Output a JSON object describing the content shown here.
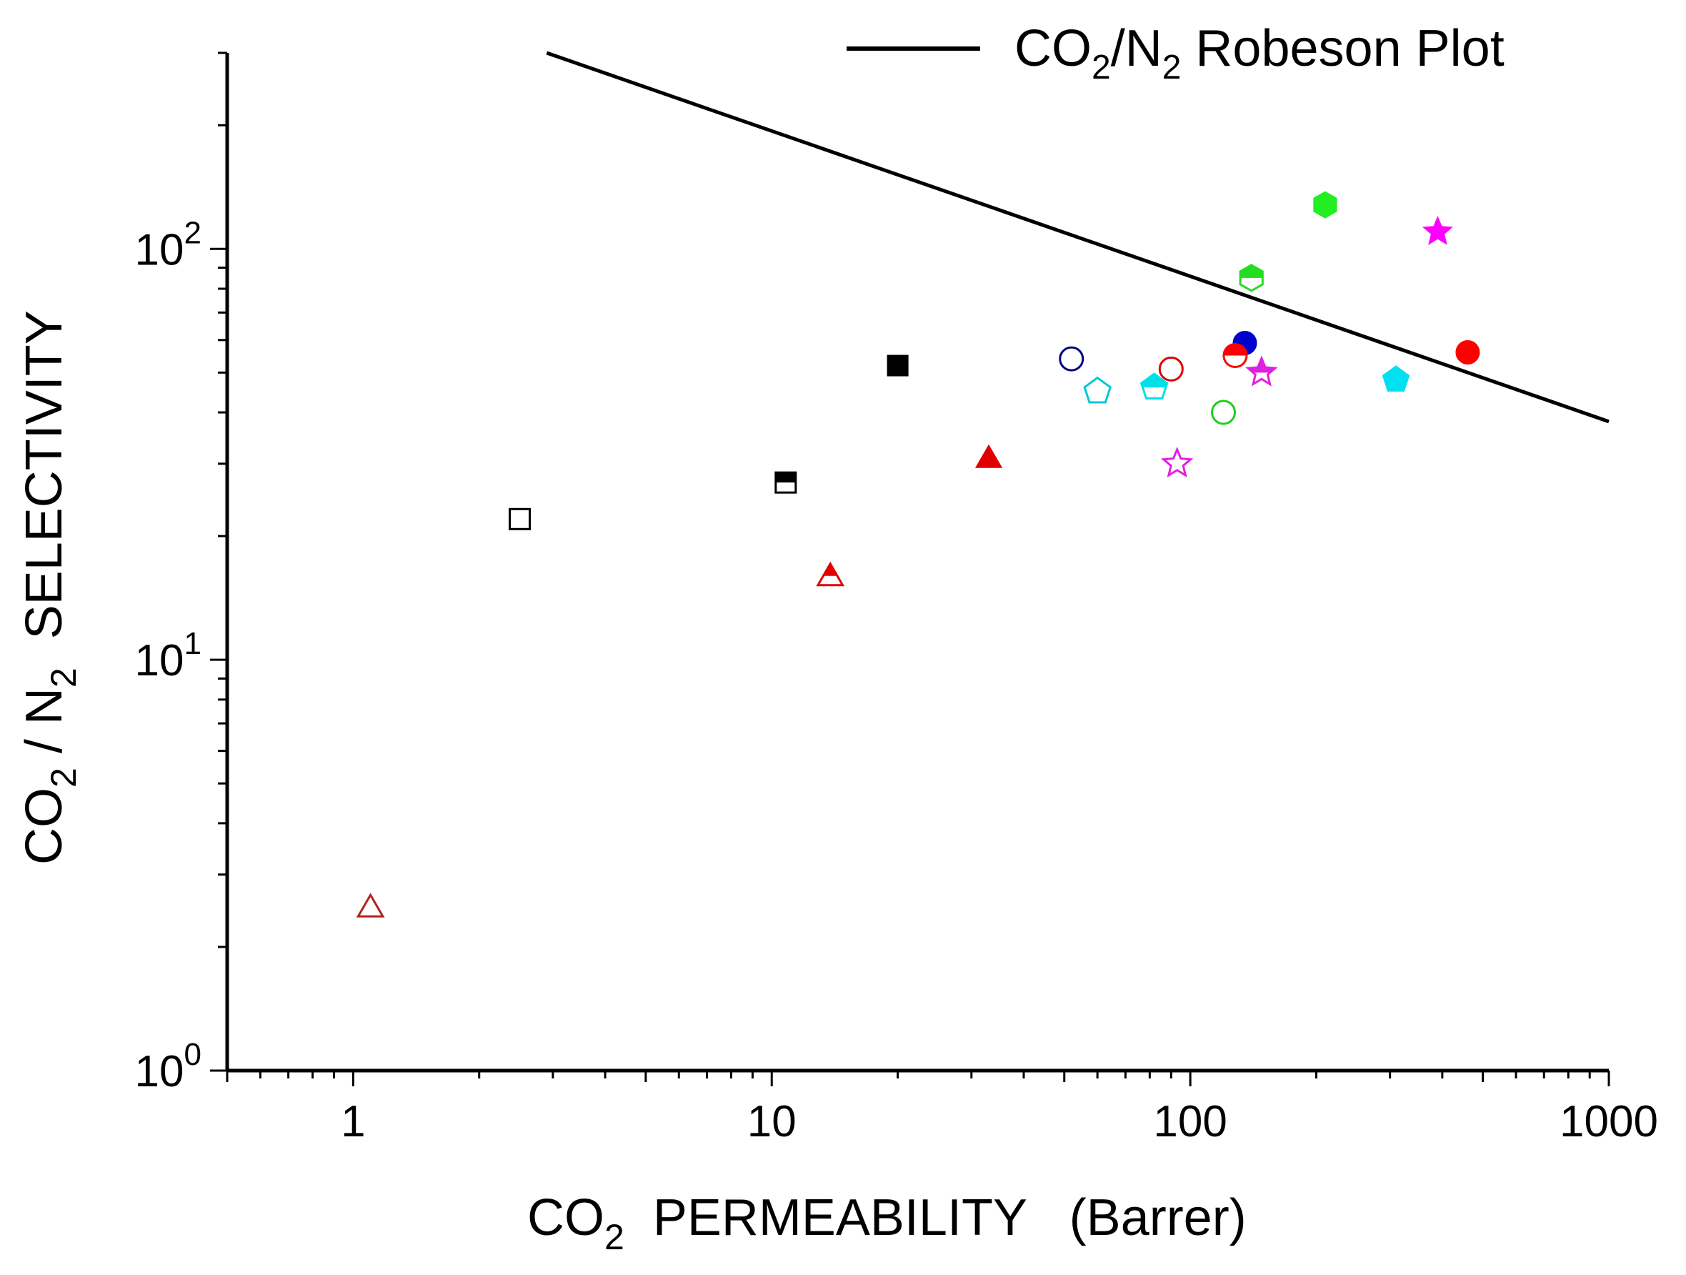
{
  "chart_data": {
    "type": "scatter",
    "title": "",
    "xscale": "log",
    "yscale": "log",
    "xlim": [
      0.5,
      1000
    ],
    "ylim": [
      1,
      300
    ],
    "x_ticks": [
      {
        "value": 1,
        "label": "1"
      },
      {
        "value": 10,
        "label": "10"
      },
      {
        "value": 100,
        "label": "100"
      },
      {
        "value": 1000,
        "label": "1000"
      }
    ],
    "y_ticks": [
      {
        "value": 1,
        "base": "10",
        "exp": "0"
      },
      {
        "value": 10,
        "base": "10",
        "exp": "1"
      },
      {
        "value": 100,
        "base": "10",
        "exp": "2"
      }
    ],
    "xlabel": {
      "a": "CO",
      "sub": "2",
      "b": "  PERMEABILITY   (Barrer)"
    },
    "ylabel": {
      "a": "CO",
      "sub1": "2",
      "b": " / N",
      "sub2": "2",
      "c": "  SELECTIVITY"
    },
    "legend": {
      "position": "top-right",
      "entries": [
        {
          "text_a": "CO",
          "sub1": "2",
          "text_b": "/N",
          "sub2": "2",
          "text_c": " Robeson Plot",
          "color": "#000000"
        }
      ]
    },
    "line": {
      "name": "CO2/N2 Robeson Plot",
      "color": "#000000",
      "x": [
        2.9,
        1000
      ],
      "y": [
        300,
        38
      ]
    },
    "points": [
      {
        "x": 1.1,
        "y": 2.5,
        "shape": "triangle",
        "filled": false,
        "color": "#b22222"
      },
      {
        "x": 2.5,
        "y": 22,
        "shape": "square",
        "filled": false,
        "color": "#000000"
      },
      {
        "x": 10.8,
        "y": 27,
        "shape": "square",
        "filled": "half",
        "color": "#000000"
      },
      {
        "x": 20,
        "y": 52,
        "shape": "square",
        "filled": true,
        "color": "#000000"
      },
      {
        "x": 13.8,
        "y": 16,
        "shape": "triangle",
        "filled": "half",
        "color": "#e00000"
      },
      {
        "x": 33,
        "y": 31,
        "shape": "triangle",
        "filled": true,
        "color": "#e00000"
      },
      {
        "x": 52,
        "y": 54,
        "shape": "circle",
        "filled": false,
        "color": "#000080"
      },
      {
        "x": 135,
        "y": 59,
        "shape": "circle",
        "filled": true,
        "color": "#0000cc"
      },
      {
        "x": 60,
        "y": 45,
        "shape": "pentagon",
        "filled": false,
        "color": "#00c8d8"
      },
      {
        "x": 82,
        "y": 46,
        "shape": "pentagon",
        "filled": "half",
        "color": "#00e0e8"
      },
      {
        "x": 310,
        "y": 48,
        "shape": "pentagon",
        "filled": true,
        "color": "#00e0f0"
      },
      {
        "x": 90,
        "y": 51,
        "shape": "circle",
        "filled": false,
        "color": "#e00000"
      },
      {
        "x": 128,
        "y": 55,
        "shape": "circle",
        "filled": "half",
        "color": "#ff0000"
      },
      {
        "x": 460,
        "y": 56,
        "shape": "circle",
        "filled": true,
        "color": "#ff0000"
      },
      {
        "x": 120,
        "y": 40,
        "shape": "circle",
        "filled": false,
        "color": "#22cc22"
      },
      {
        "x": 140,
        "y": 85,
        "shape": "hexagon",
        "filled": "half",
        "color": "#22dd22"
      },
      {
        "x": 210,
        "y": 128,
        "shape": "hexagon",
        "filled": true,
        "color": "#22ee22"
      },
      {
        "x": 93,
        "y": 30,
        "shape": "star",
        "filled": false,
        "color": "#e020e0"
      },
      {
        "x": 148,
        "y": 50,
        "shape": "star",
        "filled": "half",
        "color": "#e020e0"
      },
      {
        "x": 390,
        "y": 110,
        "shape": "star",
        "filled": true,
        "color": "#ff00ff"
      }
    ]
  }
}
